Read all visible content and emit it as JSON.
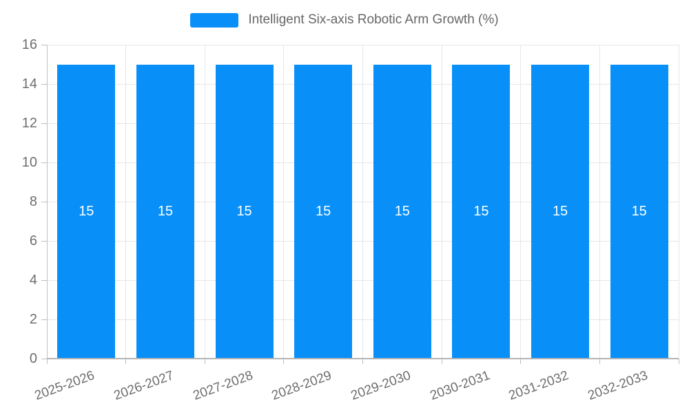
{
  "chart_data": {
    "type": "bar",
    "title": "Intelligent Six-axis Robotic Arm Growth (%)",
    "categories": [
      "2025-2026",
      "2026-2027",
      "2027-2028",
      "2028-2029",
      "2029-2030",
      "2030-2031",
      "2031-2032",
      "2032-2033"
    ],
    "values": [
      15,
      15,
      15,
      15,
      15,
      15,
      15,
      15
    ],
    "bar_value_labels": [
      "15",
      "15",
      "15",
      "15",
      "15",
      "15",
      "15",
      "15"
    ],
    "xlabel": "",
    "ylabel": "",
    "ylim": [
      0,
      16
    ],
    "ytick_step": 2,
    "ytick_labels": [
      "0",
      "2",
      "4",
      "6",
      "8",
      "10",
      "12",
      "14",
      "16"
    ],
    "grid": "on",
    "legend_position": "top-center",
    "colors": {
      "bar": "#0890f8",
      "bar_value_label": "#ffffff",
      "axis_label": "#6e6e6e",
      "legend_text": "#666666",
      "gridline": "#e6e6e6",
      "axis_line": "#b3b3b3"
    }
  }
}
